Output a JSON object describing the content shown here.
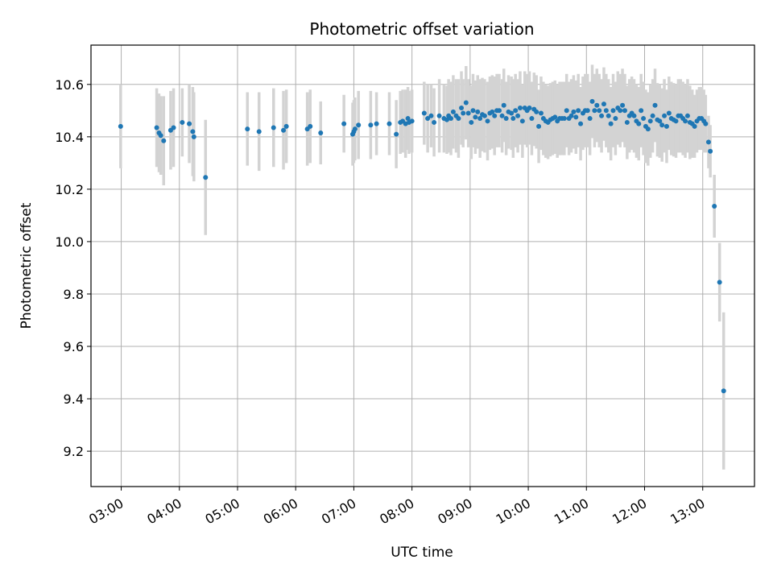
{
  "chart_data": {
    "type": "scatter",
    "title": "Photometric offset variation",
    "xlabel": "UTC time",
    "ylabel": "Photometric offset",
    "x_unit": "hours UTC",
    "xlim": [
      2.48,
      13.89
    ],
    "ylim": [
      9.065,
      10.75
    ],
    "x_ticks": [
      3,
      4,
      5,
      6,
      7,
      8,
      9,
      10,
      11,
      12,
      13
    ],
    "x_tick_labels": [
      "03:00",
      "04:00",
      "05:00",
      "06:00",
      "07:00",
      "08:00",
      "09:00",
      "10:00",
      "11:00",
      "12:00",
      "13:00"
    ],
    "y_ticks": [
      9.2,
      9.4,
      9.6,
      9.8,
      10.0,
      10.2,
      10.4,
      10.6
    ],
    "y_tick_labels": [
      "9.2",
      "9.4",
      "9.6",
      "9.8",
      "10.0",
      "10.2",
      "10.4",
      "10.6"
    ],
    "grid": true,
    "colors": {
      "points": "#1f77b4",
      "error_bars": "#d3d3d3",
      "grid": "#b0b0b0"
    },
    "series": [
      {
        "x": [
          2.99,
          3.61,
          3.65,
          3.68,
          3.73,
          3.85,
          3.9,
          4.05,
          4.17,
          4.23,
          4.25,
          4.45,
          5.17,
          5.37,
          5.62,
          5.79,
          5.84,
          6.2,
          6.25,
          6.43,
          6.83,
          6.98,
          7.0,
          7.02,
          7.08,
          7.29,
          7.39,
          7.61,
          7.73,
          7.8,
          7.84,
          7.89,
          7.93,
          7.95,
          8.0,
          8.21,
          8.27,
          8.33,
          8.38,
          8.47,
          8.55,
          8.6,
          8.63,
          8.67,
          8.71,
          8.76,
          8.8,
          8.85,
          8.88,
          8.93,
          8.97,
          9.02,
          9.05,
          9.09,
          9.13,
          9.17,
          9.21,
          9.25,
          9.3,
          9.34,
          9.38,
          9.42,
          9.46,
          9.5,
          9.55,
          9.58,
          9.62,
          9.66,
          9.71,
          9.74,
          9.78,
          9.82,
          9.86,
          9.9,
          9.94,
          9.98,
          10.02,
          10.06,
          10.1,
          10.14,
          10.18,
          10.22,
          10.26,
          10.3,
          10.34,
          10.38,
          10.42,
          10.46,
          10.5,
          10.54,
          10.58,
          10.62,
          10.66,
          10.7,
          10.74,
          10.78,
          10.82,
          10.86,
          10.9,
          10.94,
          10.98,
          11.02,
          11.06,
          11.1,
          11.14,
          11.18,
          11.22,
          11.26,
          11.3,
          11.34,
          11.38,
          11.42,
          11.46,
          11.5,
          11.54,
          11.58,
          11.62,
          11.66,
          11.7,
          11.74,
          11.78,
          11.82,
          11.86,
          11.9,
          11.94,
          11.98,
          12.02,
          12.06,
          12.1,
          12.14,
          12.18,
          12.22,
          12.26,
          12.3,
          12.34,
          12.38,
          12.42,
          12.46,
          12.5,
          12.54,
          12.58,
          12.62,
          12.66,
          12.7,
          12.74,
          12.78,
          12.82,
          12.86,
          12.9,
          12.94,
          12.98,
          13.02,
          13.05,
          13.1,
          13.13,
          13.2,
          13.29,
          13.36
        ],
        "y": [
          10.44,
          10.435,
          10.415,
          10.405,
          10.385,
          10.425,
          10.435,
          10.455,
          10.45,
          10.42,
          10.4,
          10.245,
          10.43,
          10.42,
          10.435,
          10.425,
          10.44,
          10.43,
          10.44,
          10.415,
          10.45,
          10.41,
          10.42,
          10.43,
          10.445,
          10.445,
          10.45,
          10.45,
          10.41,
          10.455,
          10.46,
          10.45,
          10.47,
          10.455,
          10.46,
          10.49,
          10.47,
          10.48,
          10.455,
          10.48,
          10.47,
          10.465,
          10.48,
          10.47,
          10.495,
          10.48,
          10.47,
          10.51,
          10.49,
          10.53,
          10.49,
          10.455,
          10.5,
          10.475,
          10.495,
          10.47,
          10.485,
          10.48,
          10.46,
          10.49,
          10.495,
          10.48,
          10.5,
          10.5,
          10.48,
          10.52,
          10.47,
          10.495,
          10.49,
          10.47,
          10.5,
          10.48,
          10.51,
          10.46,
          10.51,
          10.5,
          10.51,
          10.47,
          10.505,
          10.495,
          10.44,
          10.49,
          10.47,
          10.46,
          10.455,
          10.465,
          10.47,
          10.475,
          10.46,
          10.47,
          10.47,
          10.47,
          10.5,
          10.47,
          10.48,
          10.495,
          10.475,
          10.5,
          10.45,
          10.49,
          10.5,
          10.5,
          10.47,
          10.535,
          10.5,
          10.52,
          10.5,
          10.48,
          10.525,
          10.5,
          10.48,
          10.45,
          10.5,
          10.47,
          10.51,
          10.5,
          10.52,
          10.5,
          10.455,
          10.48,
          10.49,
          10.48,
          10.46,
          10.45,
          10.5,
          10.47,
          10.44,
          10.43,
          10.46,
          10.48,
          10.52,
          10.465,
          10.46,
          10.445,
          10.48,
          10.44,
          10.49,
          10.47,
          10.465,
          10.46,
          10.48,
          10.48,
          10.47,
          10.46,
          10.48,
          10.455,
          10.45,
          10.44,
          10.46,
          10.47,
          10.47,
          10.46,
          10.45,
          10.38,
          10.345,
          10.135,
          9.845,
          9.43
        ],
        "yerr": [
          0.16,
          0.15,
          0.15,
          0.15,
          0.17,
          0.15,
          0.15,
          0.13,
          0.15,
          0.17,
          0.17,
          0.22,
          0.14,
          0.15,
          0.15,
          0.15,
          0.14,
          0.14,
          0.14,
          0.12,
          0.11,
          0.12,
          0.12,
          0.12,
          0.13,
          0.13,
          0.12,
          0.12,
          0.13,
          0.12,
          0.12,
          0.13,
          0.12,
          0.12,
          0.12,
          0.12,
          0.13,
          0.12,
          0.13,
          0.14,
          0.13,
          0.13,
          0.14,
          0.14,
          0.14,
          0.14,
          0.15,
          0.14,
          0.13,
          0.14,
          0.13,
          0.14,
          0.14,
          0.14,
          0.14,
          0.15,
          0.14,
          0.14,
          0.15,
          0.14,
          0.14,
          0.15,
          0.14,
          0.14,
          0.14,
          0.14,
          0.14,
          0.14,
          0.14,
          0.15,
          0.14,
          0.14,
          0.14,
          0.14,
          0.14,
          0.14,
          0.14,
          0.14,
          0.14,
          0.14,
          0.14,
          0.14,
          0.14,
          0.14,
          0.14,
          0.14,
          0.14,
          0.14,
          0.14,
          0.14,
          0.14,
          0.14,
          0.14,
          0.14,
          0.14,
          0.14,
          0.14,
          0.14,
          0.14,
          0.14,
          0.14,
          0.14,
          0.14,
          0.14,
          0.14,
          0.14,
          0.14,
          0.14,
          0.14,
          0.14,
          0.14,
          0.14,
          0.14,
          0.14,
          0.14,
          0.14,
          0.14,
          0.14,
          0.14,
          0.14,
          0.14,
          0.14,
          0.14,
          0.14,
          0.14,
          0.14,
          0.14,
          0.14,
          0.14,
          0.14,
          0.14,
          0.14,
          0.14,
          0.14,
          0.14,
          0.14,
          0.14,
          0.14,
          0.14,
          0.14,
          0.14,
          0.14,
          0.14,
          0.14,
          0.14,
          0.14,
          0.13,
          0.12,
          0.12,
          0.12,
          0.12,
          0.12,
          0.11,
          0.1,
          0.1,
          0.12,
          0.15,
          0.3
        ]
      }
    ]
  }
}
